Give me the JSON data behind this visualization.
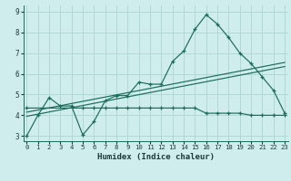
{
  "xlabel": "Humidex (Indice chaleur)",
  "x": [
    0,
    1,
    2,
    3,
    4,
    5,
    6,
    7,
    8,
    9,
    10,
    11,
    12,
    13,
    14,
    15,
    16,
    17,
    18,
    19,
    20,
    21,
    22,
    23
  ],
  "line1": [
    3.0,
    4.0,
    4.85,
    4.45,
    4.45,
    3.05,
    3.7,
    4.7,
    4.95,
    4.95,
    5.6,
    5.5,
    5.5,
    6.6,
    7.1,
    8.15,
    8.85,
    8.4,
    7.75,
    7.0,
    6.5,
    5.85,
    5.2,
    4.1
  ],
  "line2_x": [
    0,
    5,
    6,
    7,
    8,
    9,
    10,
    11,
    12,
    13,
    14,
    15,
    16,
    17,
    18,
    19,
    20,
    21,
    22,
    23
  ],
  "line2_y": [
    4.35,
    4.35,
    4.35,
    4.35,
    4.35,
    4.35,
    4.35,
    4.35,
    4.35,
    4.35,
    4.35,
    4.35,
    4.1,
    4.1,
    4.1,
    4.1,
    4.0,
    4.0,
    4.0,
    4.0
  ],
  "line3_x": [
    0,
    23
  ],
  "line3_y": [
    3.95,
    6.35
  ],
  "line4_x": [
    0,
    23
  ],
  "line4_y": [
    4.15,
    6.55
  ],
  "bg_color": "#d0eded",
  "grid_color": "#b0d8d8",
  "line_color": "#1a6b5a",
  "xlim": [
    -0.3,
    23.3
  ],
  "ylim": [
    2.75,
    9.3
  ],
  "yticks": [
    3,
    4,
    5,
    6,
    7,
    8,
    9
  ],
  "xticks": [
    0,
    1,
    2,
    3,
    4,
    5,
    6,
    7,
    8,
    9,
    10,
    11,
    12,
    13,
    14,
    15,
    16,
    17,
    18,
    19,
    20,
    21,
    22,
    23
  ]
}
